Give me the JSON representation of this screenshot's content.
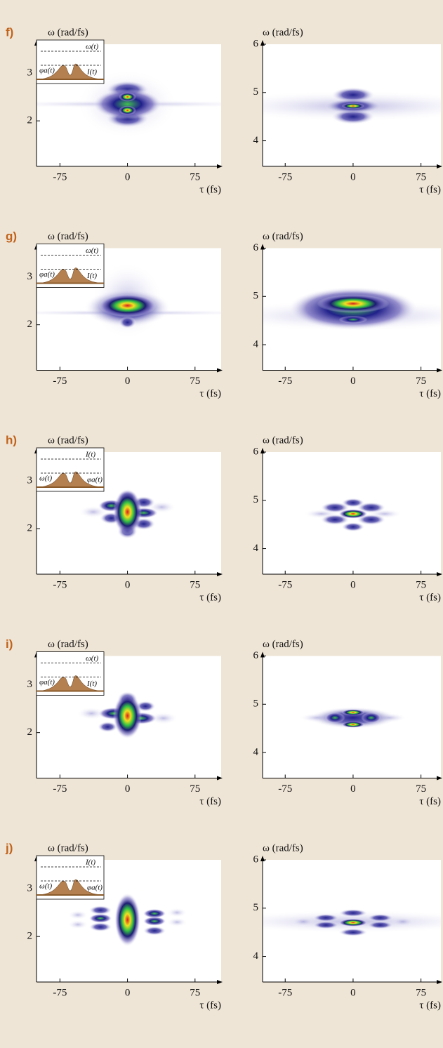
{
  "chart_data": [
    {
      "type": "heatmap",
      "panel_label": "f)",
      "y_label": "ω (rad/fs)",
      "x_label": "τ (fs)",
      "inset_labels": [
        "ω(t)",
        "φa(t)",
        "I(t)"
      ],
      "xlim": [
        -101,
        104
      ],
      "ylim": [
        1.05,
        3.6
      ],
      "xticks": [
        -75,
        0,
        75
      ],
      "yticks": [
        2,
        3
      ],
      "spots": [
        [
          0,
          2.35,
          100,
          0.05,
          4
        ],
        [
          0,
          2.35,
          35,
          0.45,
          4
        ],
        [
          0,
          2.65,
          15,
          0.12,
          3
        ],
        [
          0,
          2.05,
          15,
          0.12,
          3
        ],
        [
          0,
          2.35,
          24,
          0.2,
          2
        ],
        [
          0,
          2.5,
          6,
          0.06,
          1
        ],
        [
          0,
          2.22,
          6,
          0.06,
          1
        ]
      ]
    },
    {
      "type": "heatmap",
      "y_label": "ω (rad/fs)",
      "x_label": "τ (fs)",
      "xlim": [
        -100,
        97
      ],
      "ylim": [
        3.47,
        6
      ],
      "xticks": [
        -75,
        0,
        75
      ],
      "yticks": [
        4,
        5,
        6
      ],
      "spots": [
        [
          0,
          4.72,
          100,
          0.2,
          4
        ],
        [
          0,
          4.95,
          15,
          0.1,
          3
        ],
        [
          0,
          4.5,
          15,
          0.1,
          3
        ],
        [
          0,
          4.72,
          20,
          0.1,
          3
        ],
        [
          0,
          4.72,
          8,
          0.04,
          1
        ]
      ]
    },
    {
      "type": "heatmap",
      "panel_label": "g)",
      "y_label": "ω (rad/fs)",
      "x_label": "τ (fs)",
      "inset_labels": [
        "ω(t)",
        "φa(t)",
        "I(t)"
      ],
      "xlim": [
        -101,
        104
      ],
      "ylim": [
        1.05,
        3.6
      ],
      "xticks": [
        -75,
        0,
        75
      ],
      "yticks": [
        2,
        3
      ],
      "spots": [
        [
          0,
          2.25,
          100,
          0.04,
          4
        ],
        [
          0,
          2.5,
          25,
          0.5,
          4
        ],
        [
          0,
          2.35,
          30,
          0.25,
          3
        ],
        [
          0,
          2.05,
          6,
          0.08,
          3
        ],
        [
          0,
          2.4,
          20,
          0.15,
          1
        ]
      ]
    },
    {
      "type": "heatmap",
      "y_label": "ω (rad/fs)",
      "x_label": "τ (fs)",
      "xlim": [
        -100,
        97
      ],
      "ylim": [
        3.47,
        6
      ],
      "xticks": [
        -75,
        0,
        75
      ],
      "yticks": [
        4,
        5,
        6
      ],
      "spots": [
        [
          0,
          4.6,
          100,
          0.2,
          4
        ],
        [
          0,
          4.75,
          45,
          0.28,
          2
        ],
        [
          0,
          4.85,
          25,
          0.12,
          1
        ],
        [
          0,
          4.52,
          10,
          0.05,
          2
        ]
      ]
    },
    {
      "type": "heatmap",
      "panel_label": "h)",
      "y_label": "ω (rad/fs)",
      "x_label": "τ (fs)",
      "inset_labels": [
        "I(t)",
        "ω(t)",
        "φa(t)"
      ],
      "xlim": [
        -101,
        104
      ],
      "ylim": [
        1.05,
        3.6
      ],
      "xticks": [
        -75,
        0,
        75
      ],
      "yticks": [
        2,
        3
      ],
      "spots": [
        [
          38,
          2.45,
          10,
          0.08,
          4
        ],
        [
          -38,
          2.35,
          10,
          0.08,
          4
        ],
        [
          0,
          2.65,
          7,
          0.1,
          3
        ],
        [
          0,
          1.95,
          7,
          0.1,
          3
        ],
        [
          -18,
          2.22,
          8,
          0.08,
          3
        ],
        [
          18,
          2.55,
          8,
          0.08,
          3
        ],
        [
          18,
          2.1,
          8,
          0.08,
          3
        ],
        [
          -18,
          2.48,
          9,
          0.08,
          2
        ],
        [
          18,
          2.33,
          10,
          0.07,
          2
        ],
        [
          0,
          2.35,
          10,
          0.3,
          1
        ]
      ]
    },
    {
      "type": "heatmap",
      "y_label": "ω (rad/fs)",
      "x_label": "τ (fs)",
      "xlim": [
        -100,
        97
      ],
      "ylim": [
        3.47,
        6
      ],
      "xticks": [
        -75,
        0,
        75
      ],
      "yticks": [
        4,
        5,
        6
      ],
      "spots": [
        [
          -35,
          4.72,
          12,
          0.06,
          4
        ],
        [
          35,
          4.72,
          12,
          0.06,
          4
        ],
        [
          0,
          4.95,
          8,
          0.06,
          3
        ],
        [
          0,
          4.45,
          8,
          0.06,
          3
        ],
        [
          -20,
          4.85,
          10,
          0.07,
          3
        ],
        [
          20,
          4.85,
          10,
          0.07,
          3
        ],
        [
          -20,
          4.6,
          10,
          0.07,
          3
        ],
        [
          20,
          4.6,
          10,
          0.07,
          3
        ],
        [
          0,
          4.72,
          10,
          0.06,
          1
        ]
      ]
    },
    {
      "type": "heatmap",
      "panel_label": "i)",
      "y_label": "ω (rad/fs)",
      "x_label": "τ (fs)",
      "inset_labels": [
        "ω(t)",
        "φa(t)",
        "I(t)"
      ],
      "xlim": [
        -101,
        104
      ],
      "ylim": [
        1.05,
        3.6
      ],
      "xticks": [
        -75,
        0,
        75
      ],
      "yticks": [
        2,
        3
      ],
      "spots": [
        [
          -40,
          2.4,
          10,
          0.08,
          4
        ],
        [
          40,
          2.3,
          10,
          0.08,
          4
        ],
        [
          0,
          2.7,
          7,
          0.1,
          3
        ],
        [
          -22,
          2.12,
          7,
          0.07,
          3
        ],
        [
          20,
          2.55,
          7,
          0.07,
          3
        ],
        [
          -15,
          2.4,
          11,
          0.08,
          2
        ],
        [
          15,
          2.3,
          11,
          0.08,
          2
        ],
        [
          0,
          2.35,
          10,
          0.3,
          1
        ]
      ]
    },
    {
      "type": "heatmap",
      "y_label": "ω (rad/fs)",
      "x_label": "τ (fs)",
      "xlim": [
        -100,
        97
      ],
      "ylim": [
        3.47,
        6
      ],
      "xticks": [
        -75,
        0,
        75
      ],
      "yticks": [
        4,
        5,
        6
      ],
      "spots": [
        [
          -40,
          4.72,
          12,
          0.06,
          4
        ],
        [
          40,
          4.72,
          12,
          0.06,
          4
        ],
        [
          0,
          4.72,
          30,
          0.14,
          3
        ],
        [
          -20,
          4.72,
          7,
          0.07,
          2
        ],
        [
          20,
          4.72,
          7,
          0.07,
          2
        ],
        [
          0,
          4.83,
          8,
          0.04,
          1
        ],
        [
          0,
          4.58,
          8,
          0.04,
          1
        ]
      ]
    },
    {
      "type": "heatmap",
      "panel_label": "j)",
      "y_label": "ω (rad/fs)",
      "x_label": "τ (fs)",
      "inset_labels": [
        "I(t)",
        "ω(t)",
        "φa(t)"
      ],
      "xlim": [
        -101,
        104
      ],
      "ylim": [
        1.05,
        3.6
      ],
      "xticks": [
        -75,
        0,
        75
      ],
      "yticks": [
        2,
        3
      ],
      "spots": [
        [
          55,
          2.5,
          7,
          0.06,
          4
        ],
        [
          55,
          2.3,
          7,
          0.06,
          4
        ],
        [
          -55,
          2.45,
          7,
          0.06,
          4
        ],
        [
          -55,
          2.25,
          7,
          0.06,
          4
        ],
        [
          -30,
          2.55,
          8,
          0.06,
          3
        ],
        [
          -30,
          2.2,
          8,
          0.06,
          3
        ],
        [
          30,
          2.12,
          8,
          0.06,
          3
        ],
        [
          -30,
          2.38,
          8,
          0.06,
          2
        ],
        [
          30,
          2.48,
          8,
          0.06,
          2
        ],
        [
          30,
          2.32,
          8,
          0.06,
          2
        ],
        [
          0,
          2.35,
          9,
          0.35,
          1
        ]
      ]
    },
    {
      "type": "heatmap",
      "y_label": "ω (rad/fs)",
      "x_label": "τ (fs)",
      "xlim": [
        -100,
        97
      ],
      "ylim": [
        3.47,
        6
      ],
      "xticks": [
        -75,
        0,
        75
      ],
      "yticks": [
        4,
        5,
        6
      ],
      "spots": [
        [
          0,
          4.72,
          100,
          0.15,
          4
        ],
        [
          -55,
          4.72,
          8,
          0.06,
          4
        ],
        [
          55,
          4.72,
          8,
          0.06,
          4
        ],
        [
          -30,
          4.8,
          9,
          0.05,
          3
        ],
        [
          -30,
          4.65,
          9,
          0.05,
          3
        ],
        [
          30,
          4.8,
          9,
          0.05,
          3
        ],
        [
          30,
          4.65,
          9,
          0.05,
          3
        ],
        [
          0,
          4.9,
          10,
          0.05,
          3
        ],
        [
          0,
          4.5,
          10,
          0.05,
          3
        ],
        [
          0,
          4.7,
          10,
          0.05,
          1
        ]
      ]
    }
  ]
}
